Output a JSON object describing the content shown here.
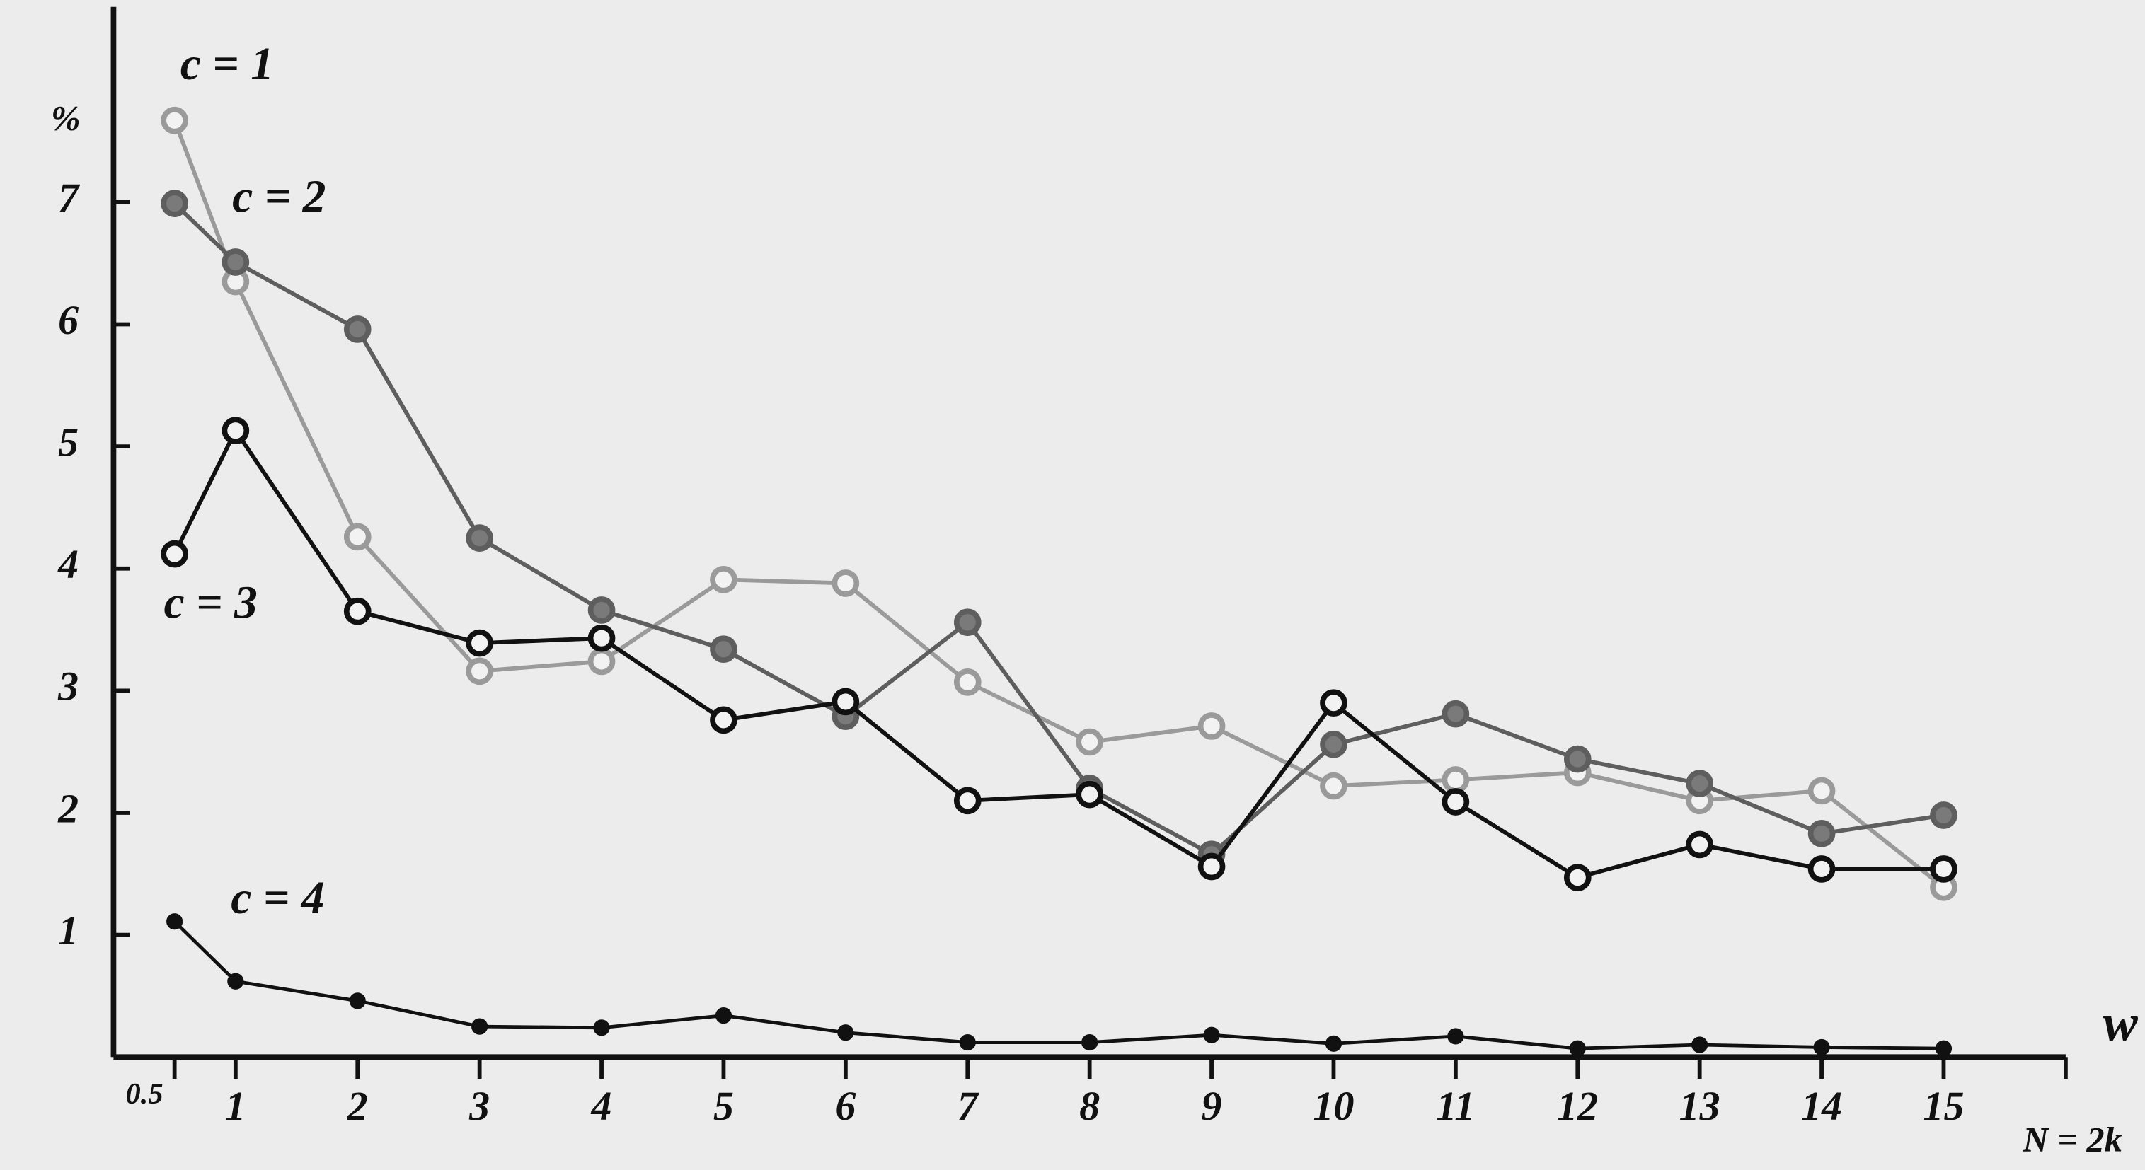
{
  "chart_data": {
    "type": "line",
    "y_label": "%",
    "x_label": "w",
    "annotation": "N = 2k",
    "x": [
      0.5,
      1,
      2,
      3,
      4,
      5,
      6,
      7,
      8,
      9,
      10,
      11,
      12,
      13,
      14,
      15
    ],
    "xlim": [
      0,
      16
    ],
    "xticks": [
      0.5,
      1,
      2,
      3,
      4,
      5,
      6,
      7,
      8,
      9,
      10,
      11,
      12,
      13,
      14,
      15
    ],
    "ylim": [
      0,
      8.6
    ],
    "yticks": [
      1,
      2,
      3,
      4,
      5,
      6,
      7
    ],
    "grid": false,
    "series": [
      {
        "name": "c = 1",
        "color": "#9a9a9a",
        "values": [
          7.67,
          6.35,
          4.26,
          3.16,
          3.24,
          3.91,
          3.88,
          3.07,
          2.58,
          2.71,
          2.22,
          2.27,
          2.33,
          2.1,
          2.18,
          1.39
        ]
      },
      {
        "name": "c = 2",
        "color": "#5e5e5e",
        "values": [
          6.99,
          6.51,
          5.96,
          4.25,
          3.66,
          3.34,
          2.79,
          3.56,
          2.2,
          1.66,
          2.56,
          2.81,
          2.44,
          2.24,
          1.83,
          1.98
        ]
      },
      {
        "name": "c = 3",
        "color": "#111111",
        "values": [
          4.12,
          5.13,
          3.65,
          3.39,
          3.43,
          2.76,
          2.91,
          2.1,
          2.15,
          1.56,
          2.9,
          2.09,
          1.47,
          1.74,
          1.54,
          1.54
        ]
      },
      {
        "name": "c = 4",
        "color": "#111111",
        "values": [
          1.11,
          0.62,
          0.46,
          0.25,
          0.24,
          0.34,
          0.2,
          0.12,
          0.12,
          0.18,
          0.11,
          0.17,
          0.07,
          0.1,
          0.08,
          0.07
        ]
      }
    ]
  }
}
